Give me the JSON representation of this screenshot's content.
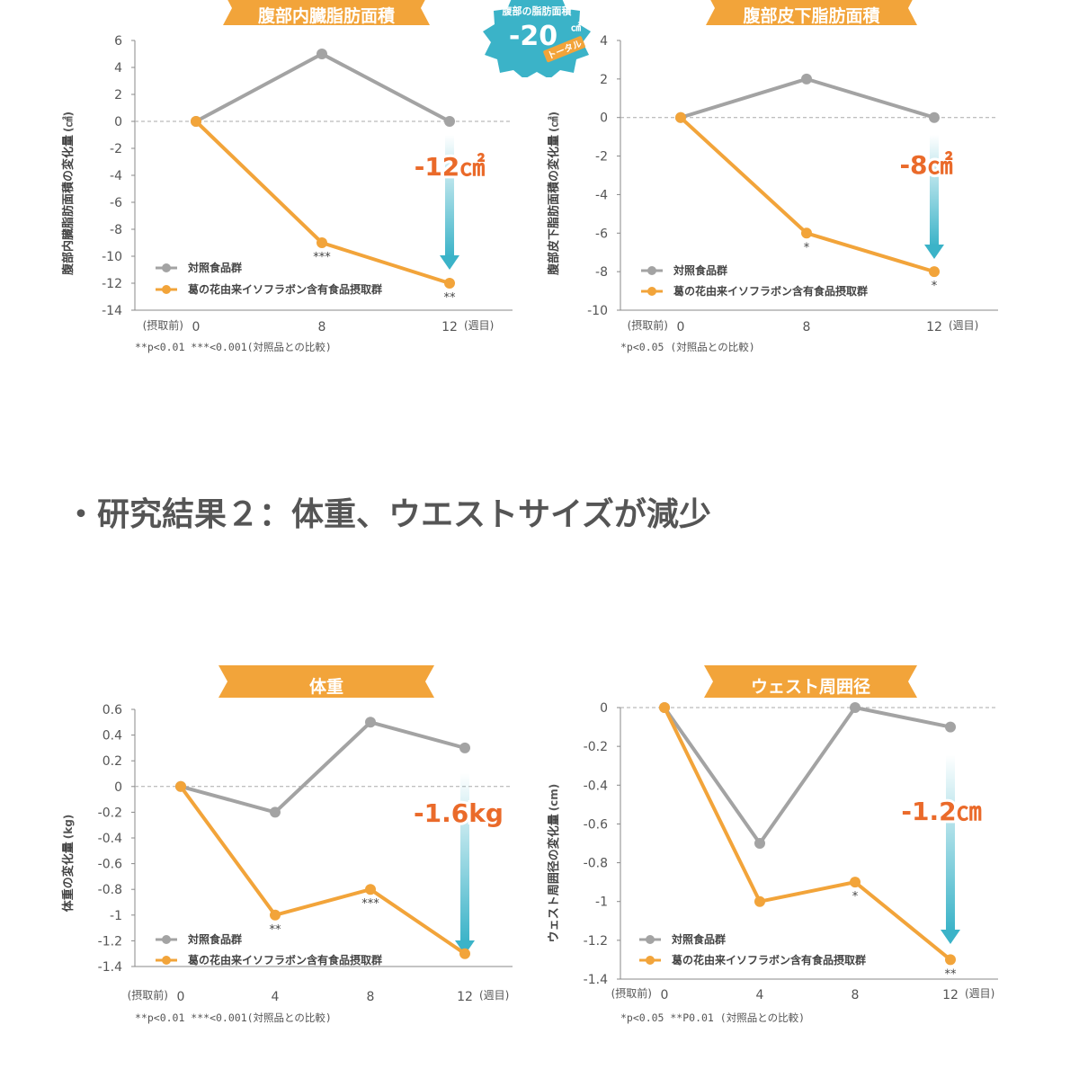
{
  "section_heading": "・研究結果２：体重、ウエストサイズが減少",
  "badge": {
    "top": "腹部の脂肪面積",
    "value": "-20",
    "unit": "㎠",
    "tag": "トータル"
  },
  "colors": {
    "control": "#a3a3a3",
    "treatment": "#f2a43a",
    "arrow": "#3bb3c8",
    "delta": "#ea6a2a",
    "banner": "#f2a43a"
  },
  "chart_data": [
    {
      "type": "line",
      "title": "腹部内臓脂肪面積",
      "ylabel": "腹部内臓脂肪面積の変化量",
      "yunit": "(㎠)",
      "x": [
        0,
        8,
        12
      ],
      "x_tick_labels": [
        "0",
        "8",
        "12"
      ],
      "x_prefix": "(摂取前)",
      "x_suffix": "(週目)",
      "ylim": [
        -14,
        6
      ],
      "yticks": [
        6,
        4,
        2,
        0,
        -2,
        -4,
        -6,
        -8,
        -10,
        -12,
        -14
      ],
      "series": [
        {
          "name": "対照食品群",
          "values": [
            0,
            5,
            0
          ]
        },
        {
          "name": "葛の花由来イソフラボン含有食品摂取群",
          "values": [
            0,
            -9,
            -12
          ]
        }
      ],
      "significance": [
        "",
        "***",
        "**"
      ],
      "delta_label": "-12㎠",
      "footnote": "**p<0.01 ***<0.001(対照品との比較)"
    },
    {
      "type": "line",
      "title": "腹部皮下脂肪面積",
      "ylabel": "腹部皮下脂肪面積の変化量",
      "yunit": "(㎠)",
      "x": [
        0,
        8,
        12
      ],
      "x_tick_labels": [
        "0",
        "8",
        "12"
      ],
      "x_prefix": "(摂取前)",
      "x_suffix": "(週目)",
      "ylim": [
        -10,
        4
      ],
      "yticks": [
        4,
        2,
        0,
        -2,
        -4,
        -6,
        -8,
        -10
      ],
      "series": [
        {
          "name": "対照食品群",
          "values": [
            0,
            2,
            0
          ]
        },
        {
          "name": "葛の花由来イソフラボン含有食品摂取群",
          "values": [
            0,
            -6,
            -8
          ]
        }
      ],
      "significance": [
        "",
        "*",
        "*"
      ],
      "delta_label": "-8㎠",
      "footnote": "*p<0.05 (対照品との比較)"
    },
    {
      "type": "line",
      "title": "体重",
      "ylabel": "体重の変化量",
      "yunit": "(kg)",
      "x": [
        0,
        4,
        8,
        12
      ],
      "x_tick_labels": [
        "0",
        "4",
        "8",
        "12"
      ],
      "x_prefix": "(摂取前)",
      "x_suffix": "(週目)",
      "ylim": [
        -1.4,
        0.6
      ],
      "yticks": [
        0.6,
        0.4,
        0.2,
        0,
        -0.2,
        -0.4,
        -0.6,
        -0.8,
        -1,
        -1.2,
        -1.4
      ],
      "series": [
        {
          "name": "対照食品群",
          "values": [
            0,
            -0.2,
            0.5,
            0.3
          ]
        },
        {
          "name": "葛の花由来イソフラボン含有食品摂取群",
          "values": [
            0,
            -1.0,
            -0.8,
            -1.3
          ]
        }
      ],
      "significance": [
        "",
        "**",
        "***",
        ""
      ],
      "delta_label": "-1.6kg",
      "footnote": "**p<0.01 ***<0.001(対照品との比較)"
    },
    {
      "type": "line",
      "title": "ウェスト周囲径",
      "ylabel": "ウェスト周囲径の変化量",
      "yunit": "(cm)",
      "x": [
        0,
        4,
        8,
        12
      ],
      "x_tick_labels": [
        "0",
        "4",
        "8",
        "12"
      ],
      "x_prefix": "(摂取前)",
      "x_suffix": "(週目)",
      "ylim": [
        -1.4,
        0
      ],
      "yticks": [
        0,
        -0.2,
        -0.4,
        -0.6,
        -0.8,
        -1,
        -1.2,
        -1.4
      ],
      "series": [
        {
          "name": "対照食品群",
          "values": [
            0,
            -0.7,
            0,
            -0.1
          ]
        },
        {
          "name": "葛の花由来イソフラボン含有食品摂取群",
          "values": [
            0,
            -1.0,
            -0.9,
            -1.3
          ]
        }
      ],
      "significance": [
        "",
        "",
        "*",
        "**"
      ],
      "delta_label": "-1.2㎝",
      "footnote": "*p<0.05 **P0.01 (対照品との比較)"
    }
  ]
}
